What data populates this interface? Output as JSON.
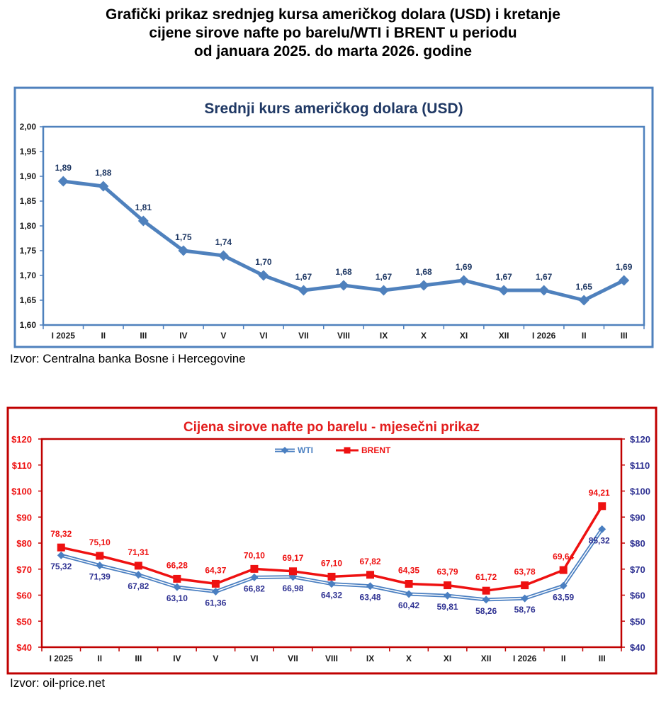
{
  "title_lines": [
    "Grafički prikaz srednjeg kursa američkog dolara (USD) i kretanje",
    "cijene sirove nafte po barelu/WTI i BRENT u periodu",
    "od januara 2025. do marta 2026. godine"
  ],
  "sources": {
    "usd": "Izvor: Centralna banka Bosne i Hercegovine",
    "oil": "Izvor: oil-price.net"
  },
  "colors": {
    "usd_frame": "#4f81bd",
    "usd_title": "#1f3864",
    "usd_line": "#4f81bd",
    "oil_frame": "#c00000",
    "oil_title": "#e31d1d",
    "wti": "#4a7fc1",
    "brent": "#ee1111",
    "right_axis": "#2e3192"
  },
  "chart_data": [
    {
      "type": "line",
      "title": "Srednji kurs američkog dolara (USD)",
      "categories": [
        "I 2025",
        "II",
        "III",
        "IV",
        "V",
        "VI",
        "VII",
        "VIII",
        "IX",
        "X",
        "XI",
        "XII",
        "I 2026",
        "II",
        "III"
      ],
      "values": [
        1.89,
        1.88,
        1.81,
        1.75,
        1.74,
        1.7,
        1.67,
        1.68,
        1.67,
        1.68,
        1.69,
        1.67,
        1.67,
        1.65,
        1.69
      ],
      "labels": [
        "1,89",
        "1,88",
        "1,81",
        "1,75",
        "1,74",
        "1,70",
        "1,67",
        "1,68",
        "1,67",
        "1,68",
        "1,69",
        "1,67",
        "1,67",
        "1,65",
        "1,69"
      ],
      "ylim": [
        1.6,
        2.0
      ],
      "ytick_values": [
        1.6,
        1.65,
        1.7,
        1.75,
        1.8,
        1.85,
        1.9,
        1.95,
        2.0
      ],
      "yticks": [
        "1,60",
        "1,65",
        "1,70",
        "1,75",
        "1,80",
        "1,85",
        "1,90",
        "1,95",
        "2,00"
      ],
      "grid": false,
      "legend": "none"
    },
    {
      "type": "line",
      "title": "Cijena sirove nafte po barelu - mjesečni prikaz",
      "categories": [
        "I 2025",
        "II",
        "III",
        "IV",
        "V",
        "VI",
        "VII",
        "VIII",
        "IX",
        "X",
        "XI",
        "XII",
        "I 2026",
        "II",
        "III"
      ],
      "series": [
        {
          "name": "WTI",
          "values": [
            75.32,
            71.39,
            67.82,
            63.1,
            61.36,
            66.82,
            66.98,
            64.32,
            63.48,
            60.42,
            59.81,
            58.26,
            58.76,
            63.59,
            85.32
          ],
          "labels": [
            "75,32",
            "71,39",
            "67,82",
            "63,10",
            "61,36",
            "66,82",
            "66,98",
            "64,32",
            "63,48",
            "60,42",
            "59,81",
            "58,26",
            "58,76",
            "63,59",
            "85,32"
          ]
        },
        {
          "name": "BRENT",
          "values": [
            78.32,
            75.1,
            71.31,
            66.28,
            64.37,
            70.1,
            69.17,
            67.1,
            67.82,
            64.35,
            63.79,
            61.72,
            63.78,
            69.64,
            94.21
          ],
          "labels": [
            "78,32",
            "75,10",
            "71,31",
            "66,28",
            "64,37",
            "70,10",
            "69,17",
            "67,10",
            "67,82",
            "64,35",
            "63,79",
            "61,72",
            "63,78",
            "69,64",
            "94,21"
          ]
        }
      ],
      "ylim": [
        40,
        120
      ],
      "ytick_values": [
        40,
        50,
        60,
        70,
        80,
        90,
        100,
        110,
        120
      ],
      "yticks_left": [
        "$40",
        "$50",
        "$60",
        "$70",
        "$80",
        "$90",
        "$100",
        "$110",
        "$120"
      ],
      "yticks_right": [
        "$40",
        "$50",
        "$60",
        "$70",
        "$80",
        "$90",
        "$100",
        "$110",
        "$120"
      ],
      "grid": false,
      "legend": "top-center"
    }
  ]
}
